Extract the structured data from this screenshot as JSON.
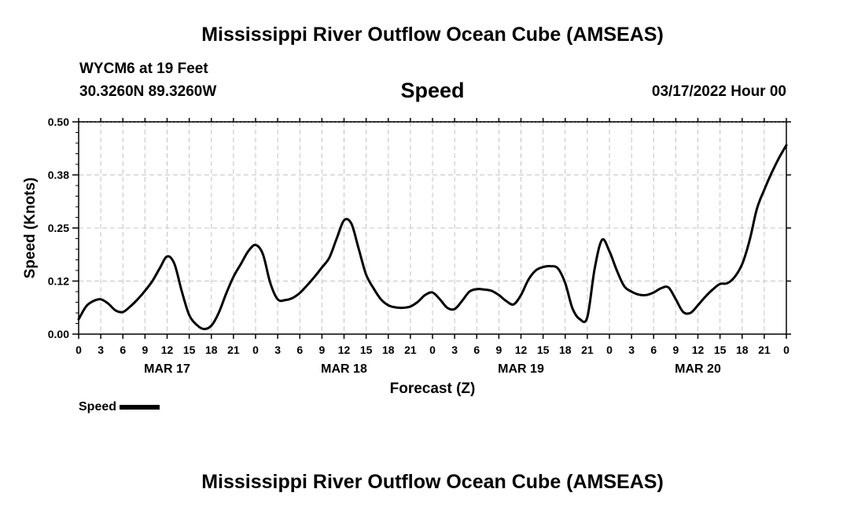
{
  "header": {
    "title": "Mississippi River Outflow Ocean Cube (AMSEAS)",
    "station": "WYCM6 at 19 Feet",
    "coords": "30.3260N  89.3260W",
    "subtitle": "Speed",
    "timestamp": "03/17/2022 Hour 00"
  },
  "footer": {
    "title": "Mississippi River Outflow Ocean Cube (AMSEAS)"
  },
  "legend": {
    "label": "Speed"
  },
  "chart_data": {
    "type": "line",
    "title": "Speed",
    "xlabel": "Forecast (Z)",
    "ylabel": "Speed (Knots)",
    "xlim": [
      0,
      96
    ],
    "ylim": [
      0,
      0.5
    ],
    "grid": true,
    "y_ticks": [
      0,
      0.125,
      0.25,
      0.375,
      0.5
    ],
    "y_tick_labels": [
      "0.00",
      "0.12",
      "0.25",
      "0.38",
      "0.50"
    ],
    "x_ticks": [
      0,
      3,
      6,
      9,
      12,
      15,
      18,
      21,
      24,
      27,
      30,
      33,
      36,
      39,
      42,
      45,
      48,
      51,
      54,
      57,
      60,
      63,
      66,
      69,
      72,
      75,
      78,
      81,
      84,
      87,
      90,
      93,
      96
    ],
    "x_tick_labels": [
      "0",
      "3",
      "6",
      "9",
      "12",
      "15",
      "18",
      "21",
      "0",
      "3",
      "6",
      "9",
      "12",
      "15",
      "18",
      "21",
      "0",
      "3",
      "6",
      "9",
      "12",
      "15",
      "18",
      "21",
      "0",
      "3",
      "6",
      "9",
      "12",
      "15",
      "18",
      "21",
      "0"
    ],
    "date_labels": [
      {
        "x": 12,
        "label": "MAR 17"
      },
      {
        "x": 36,
        "label": "MAR 18"
      },
      {
        "x": 60,
        "label": "MAR 19"
      },
      {
        "x": 84,
        "label": "MAR 20"
      }
    ],
    "series": [
      {
        "name": "Speed",
        "x": [
          0,
          1,
          2,
          3,
          4,
          5,
          6,
          7,
          8,
          9,
          10,
          11,
          12,
          13,
          14,
          15,
          16,
          17,
          18,
          19,
          20,
          21,
          22,
          23,
          24,
          25,
          26,
          27,
          28,
          29,
          30,
          31,
          32,
          33,
          34,
          35,
          36,
          37,
          38,
          39,
          40,
          41,
          42,
          43,
          44,
          45,
          46,
          47,
          48,
          49,
          50,
          51,
          52,
          53,
          54,
          55,
          56,
          57,
          58,
          59,
          60,
          61,
          62,
          63,
          64,
          65,
          66,
          67,
          68,
          69,
          70,
          71,
          72,
          73,
          74,
          75,
          76,
          77,
          78,
          79,
          80,
          81,
          82,
          83,
          84,
          85,
          86,
          87,
          88,
          89,
          90,
          91,
          92,
          93,
          94,
          95,
          96
        ],
        "values": [
          0.035,
          0.065,
          0.078,
          0.082,
          0.072,
          0.056,
          0.052,
          0.065,
          0.082,
          0.102,
          0.125,
          0.155,
          0.183,
          0.165,
          0.1,
          0.045,
          0.022,
          0.012,
          0.02,
          0.05,
          0.095,
          0.135,
          0.165,
          0.195,
          0.21,
          0.188,
          0.12,
          0.082,
          0.08,
          0.085,
          0.097,
          0.115,
          0.135,
          0.157,
          0.18,
          0.225,
          0.268,
          0.26,
          0.2,
          0.14,
          0.108,
          0.082,
          0.068,
          0.063,
          0.062,
          0.065,
          0.076,
          0.092,
          0.098,
          0.082,
          0.062,
          0.059,
          0.078,
          0.1,
          0.106,
          0.105,
          0.102,
          0.092,
          0.078,
          0.07,
          0.092,
          0.128,
          0.15,
          0.158,
          0.16,
          0.155,
          0.12,
          0.06,
          0.035,
          0.04,
          0.155,
          0.222,
          0.195,
          0.15,
          0.113,
          0.1,
          0.093,
          0.092,
          0.098,
          0.108,
          0.11,
          0.082,
          0.052,
          0.05,
          0.068,
          0.088,
          0.105,
          0.118,
          0.12,
          0.135,
          0.165,
          0.22,
          0.295,
          0.34,
          0.38,
          0.415,
          0.445
        ]
      }
    ]
  }
}
